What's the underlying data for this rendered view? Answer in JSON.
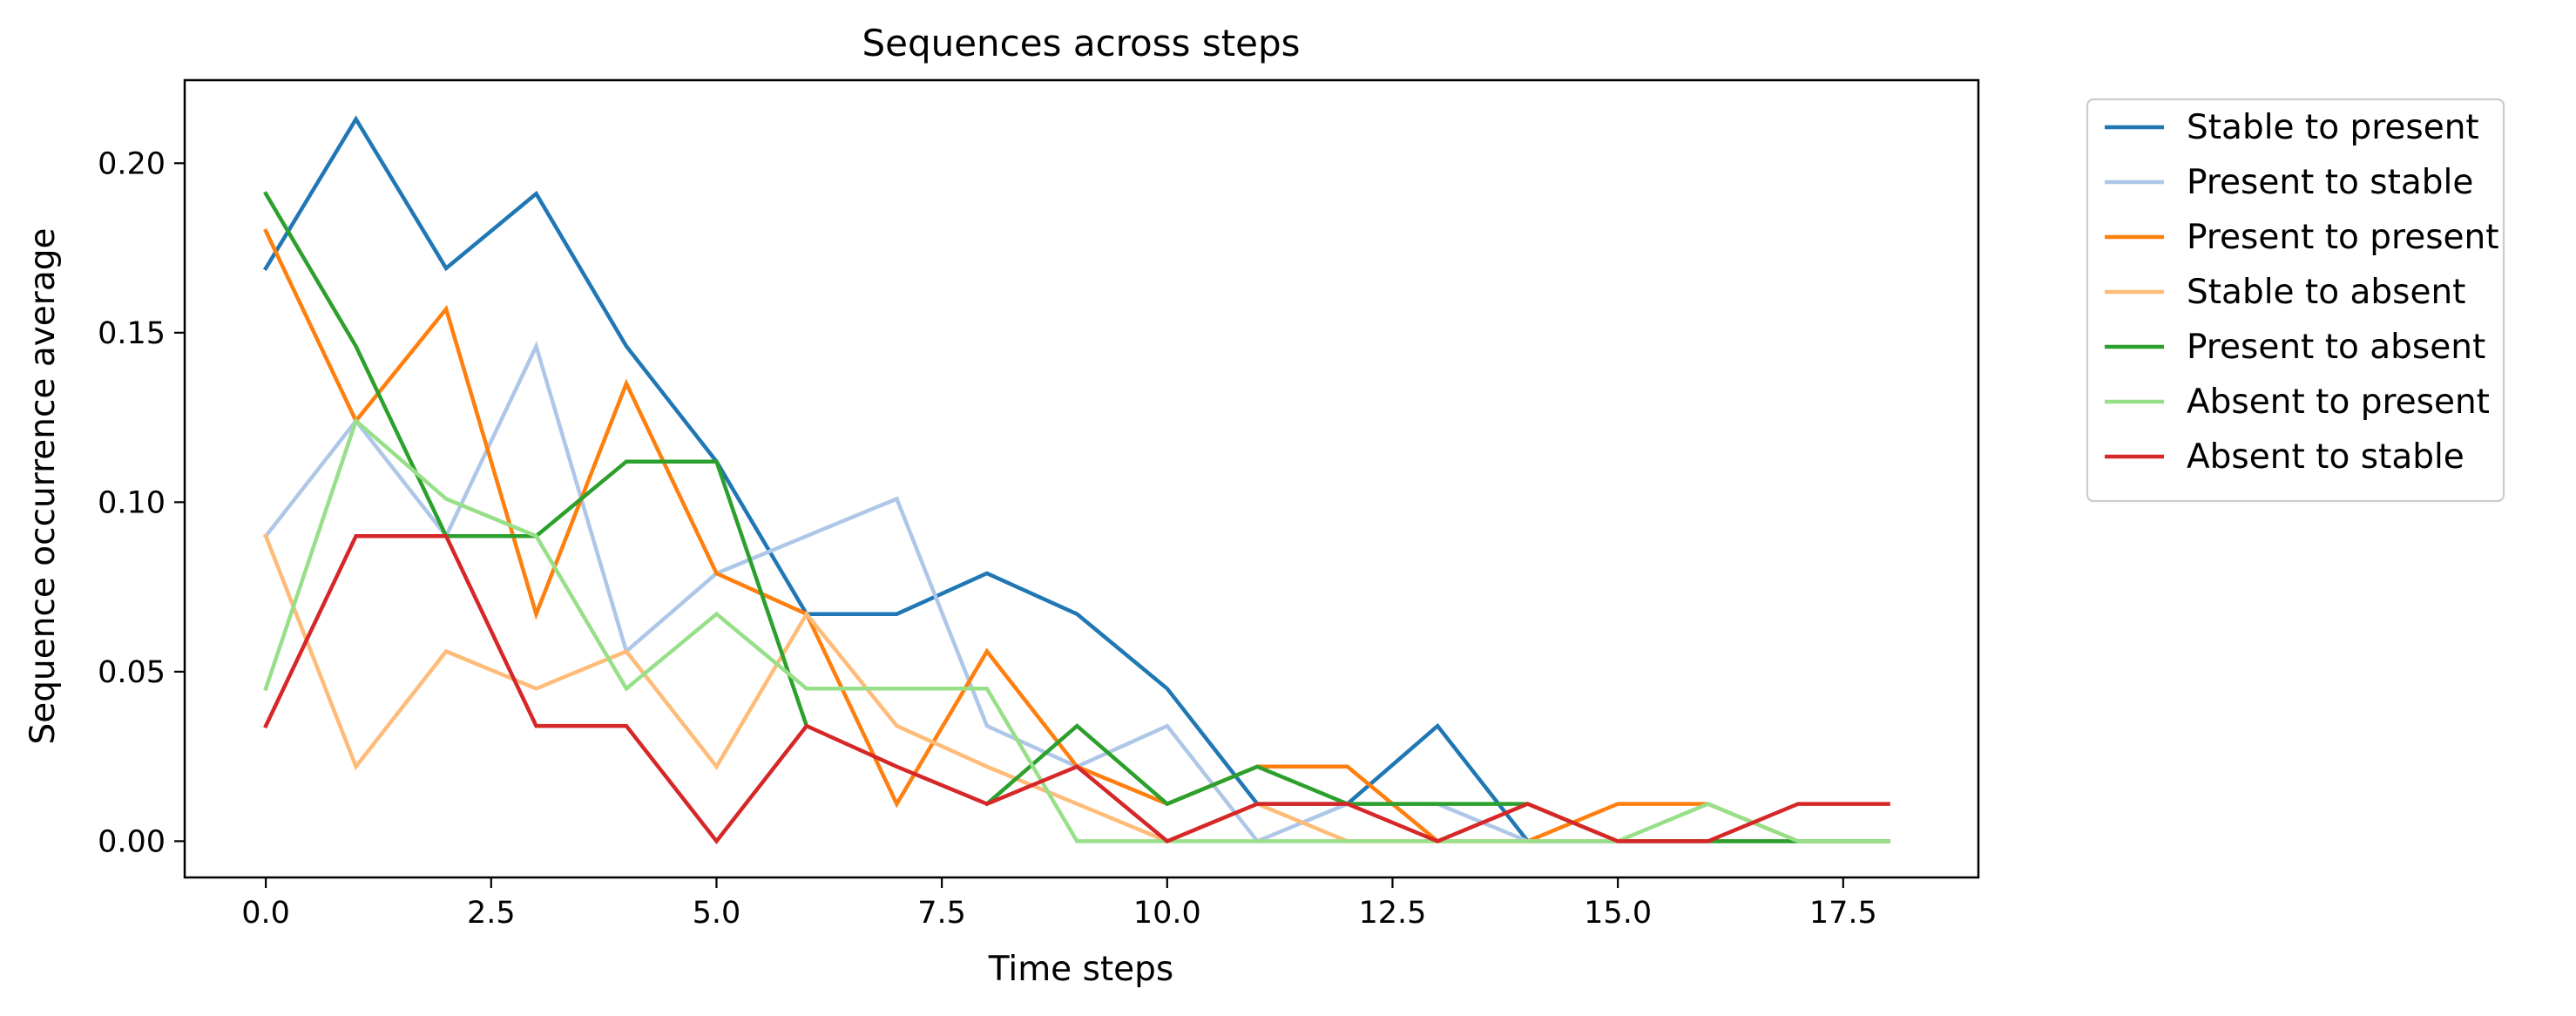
{
  "chart_data": {
    "type": "line",
    "title": "Sequences across steps",
    "xlabel": "Time steps",
    "ylabel": "Sequence occurrence average",
    "xlim": [
      -0.9,
      19.0
    ],
    "ylim": [
      -0.0107,
      0.2245
    ],
    "xticks": [
      0,
      2.5,
      5,
      7.5,
      10,
      12.5,
      15,
      17.5
    ],
    "xtick_labels": [
      "0.0",
      "2.5",
      "5.0",
      "7.5",
      "10.0",
      "12.5",
      "15.0",
      "17.5"
    ],
    "yticks": [
      0,
      0.05,
      0.1,
      0.15,
      0.2
    ],
    "ytick_labels": [
      "0.00",
      "0.05",
      "0.10",
      "0.15",
      "0.20"
    ],
    "grid": false,
    "legend_position": "outside-right",
    "x": [
      0,
      1,
      2,
      3,
      4,
      5,
      6,
      7,
      8,
      9,
      10,
      11,
      12,
      13,
      14,
      15,
      16,
      17,
      18
    ],
    "series": [
      {
        "name": "Stable to present",
        "color": "#1f77b4",
        "values": [
          0.169,
          0.213,
          0.169,
          0.191,
          0.146,
          0.112,
          0.067,
          0.067,
          0.079,
          0.067,
          0.045,
          0.011,
          0.011,
          0.034,
          0.0,
          0.0,
          0.0,
          0.0,
          0.0
        ]
      },
      {
        "name": "Present to stable",
        "color": "#aec7e8",
        "values": [
          0.09,
          0.124,
          0.09,
          0.146,
          0.056,
          0.079,
          0.09,
          0.101,
          0.034,
          0.022,
          0.034,
          0.0,
          0.011,
          0.011,
          0.0,
          0.0,
          0.0,
          0.0,
          0.0
        ]
      },
      {
        "name": "Present to present",
        "color": "#ff7f0e",
        "values": [
          0.18,
          0.124,
          0.157,
          0.067,
          0.135,
          0.079,
          0.067,
          0.011,
          0.056,
          0.022,
          0.011,
          0.022,
          0.022,
          0.0,
          0.0,
          0.011,
          0.011,
          0.0,
          0.0
        ]
      },
      {
        "name": "Stable to absent",
        "color": "#ffbb78",
        "values": [
          0.09,
          0.022,
          0.056,
          0.045,
          0.056,
          0.022,
          0.067,
          0.034,
          0.022,
          0.011,
          0.0,
          0.011,
          0.0,
          0.0,
          0.0,
          0.0,
          0.0,
          0.0,
          0.0
        ]
      },
      {
        "name": "Present to absent",
        "color": "#2ca02c",
        "values": [
          0.191,
          0.146,
          0.09,
          0.09,
          0.112,
          0.112,
          0.034,
          null,
          0.011,
          0.034,
          0.011,
          0.022,
          0.011,
          0.011,
          0.011,
          0.0,
          0.0,
          0.0,
          0.0
        ]
      },
      {
        "name": "Absent to present",
        "color": "#98df8a",
        "values": [
          0.045,
          0.124,
          0.101,
          0.09,
          0.045,
          0.067,
          0.045,
          0.045,
          0.045,
          0.0,
          0.0,
          0.0,
          0.0,
          0.0,
          0.0,
          0.0,
          0.011,
          0.0,
          0.0
        ]
      },
      {
        "name": "Absent to stable",
        "color": "#d62728",
        "values": [
          0.034,
          0.09,
          0.09,
          0.034,
          0.034,
          0.0,
          0.034,
          0.022,
          0.011,
          0.022,
          0.0,
          0.011,
          0.011,
          0.0,
          0.011,
          0.0,
          0.0,
          0.011,
          0.011
        ]
      }
    ]
  }
}
